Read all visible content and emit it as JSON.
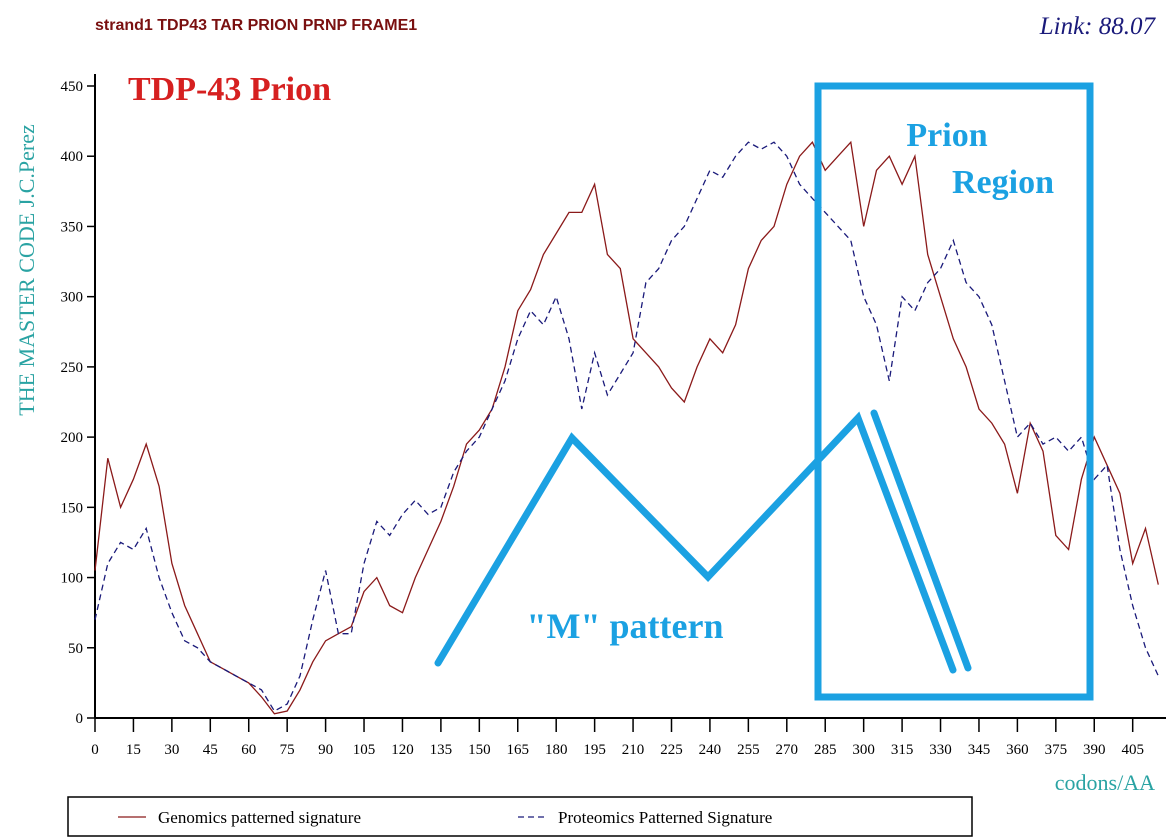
{
  "chart_data": {
    "type": "line",
    "title": "strand1 TDP43 TAR PRION PRNP FRAME1",
    "link": "Link: 88.07",
    "heading": "TDP-43 Prion",
    "y_label": "THE MASTER CODE J.C.Perez",
    "x_label": "codons/AA",
    "annotations": [
      "Prion",
      "Region",
      "\"M\" pattern"
    ],
    "x": [
      0,
      5,
      10,
      15,
      20,
      25,
      30,
      35,
      40,
      45,
      50,
      55,
      60,
      65,
      70,
      75,
      80,
      85,
      90,
      95,
      100,
      105,
      110,
      115,
      120,
      125,
      130,
      135,
      140,
      145,
      150,
      155,
      160,
      165,
      170,
      175,
      180,
      185,
      190,
      195,
      200,
      205,
      210,
      215,
      220,
      225,
      230,
      235,
      240,
      245,
      250,
      255,
      260,
      265,
      270,
      275,
      280,
      285,
      290,
      295,
      300,
      305,
      310,
      315,
      320,
      325,
      330,
      335,
      340,
      345,
      350,
      355,
      360,
      365,
      370,
      375,
      380,
      385,
      390,
      395,
      400,
      405,
      410,
      415
    ],
    "series": [
      {
        "name": "Genomics patterned signature",
        "color": "#8b1a1a",
        "dash": false,
        "values": [
          105,
          185,
          150,
          170,
          195,
          165,
          110,
          80,
          60,
          40,
          35,
          30,
          25,
          15,
          3,
          5,
          20,
          40,
          55,
          60,
          65,
          90,
          100,
          80,
          75,
          100,
          120,
          140,
          165,
          195,
          205,
          220,
          250,
          290,
          305,
          330,
          345,
          360,
          360,
          380,
          330,
          320,
          270,
          260,
          250,
          235,
          225,
          250,
          270,
          260,
          280,
          320,
          340,
          350,
          380,
          400,
          410,
          390,
          400,
          410,
          350,
          390,
          400,
          380,
          400,
          330,
          300,
          270,
          250,
          220,
          210,
          195,
          160,
          210,
          190,
          130,
          120,
          170,
          200,
          180,
          160,
          110,
          135,
          95
        ]
      },
      {
        "name": "Proteomics Patterned Signature",
        "color": "#1a1a7a",
        "dash": true,
        "values": [
          70,
          110,
          125,
          120,
          135,
          100,
          75,
          55,
          50,
          40,
          35,
          30,
          25,
          20,
          5,
          10,
          30,
          70,
          105,
          60,
          60,
          110,
          140,
          130,
          145,
          155,
          145,
          150,
          175,
          190,
          200,
          220,
          240,
          270,
          290,
          280,
          300,
          270,
          220,
          260,
          230,
          245,
          260,
          310,
          320,
          340,
          350,
          370,
          390,
          385,
          400,
          410,
          405,
          410,
          400,
          380,
          370,
          360,
          350,
          340,
          300,
          280,
          240,
          300,
          290,
          310,
          320,
          340,
          310,
          300,
          280,
          240,
          200,
          210,
          195,
          200,
          190,
          200,
          170,
          180,
          120,
          80,
          50,
          30
        ]
      }
    ],
    "xlim": [
      0,
      418
    ],
    "ylim": [
      0,
      450
    ],
    "xticks": [
      0,
      15,
      30,
      45,
      60,
      75,
      90,
      105,
      120,
      135,
      150,
      165,
      180,
      195,
      210,
      225,
      240,
      255,
      270,
      285,
      300,
      315,
      330,
      345,
      360,
      375,
      390,
      405
    ],
    "yticks": [
      0,
      50,
      100,
      150,
      200,
      250,
      300,
      350,
      400,
      450
    ]
  }
}
